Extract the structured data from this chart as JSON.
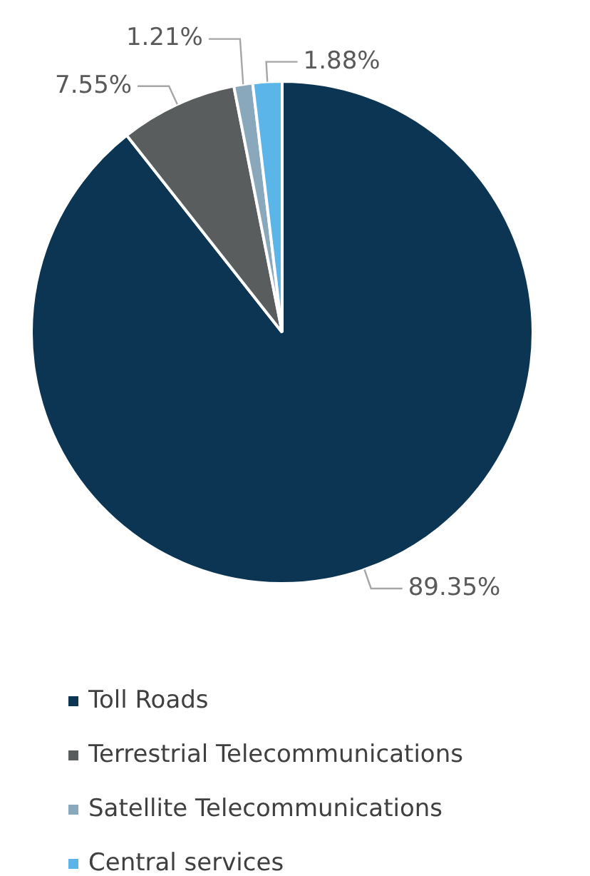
{
  "chart_data": {
    "type": "pie",
    "categories": [
      "Toll Roads",
      "Terrestrial Telecommunications",
      "Satellite Telecommunications",
      "Central services"
    ],
    "values": [
      89.35,
      7.55,
      1.21,
      1.88
    ],
    "value_labels": [
      "89.35%",
      "7.55%",
      "1.21%",
      "1.88%"
    ],
    "colors": [
      "#0b3552",
      "#5a5d5e",
      "#8aa8bb",
      "#5bb5e8"
    ],
    "legend": "bottom"
  }
}
